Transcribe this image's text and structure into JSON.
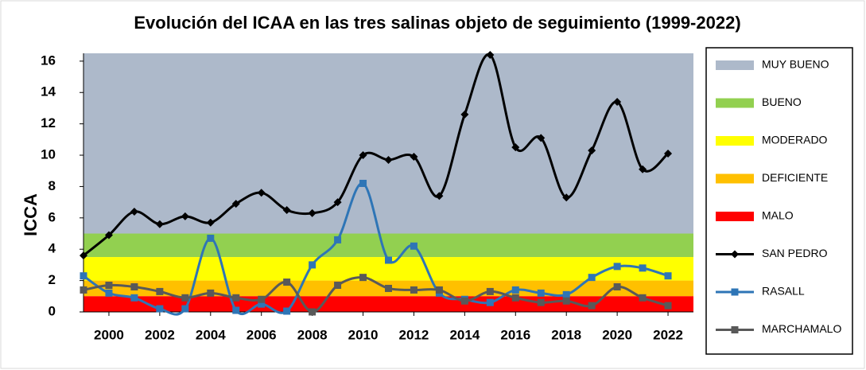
{
  "chart_data": {
    "type": "line",
    "title": "Evolución del ICAA en las tres salinas objeto de seguimiento (1999-2022)",
    "y_label": "ICCA",
    "x": [
      1999,
      2000,
      2001,
      2002,
      2003,
      2004,
      2005,
      2006,
      2007,
      2008,
      2009,
      2010,
      2011,
      2012,
      2013,
      2014,
      2015,
      2016,
      2017,
      2018,
      2019,
      2020,
      2021,
      2022
    ],
    "xlim": [
      1999,
      2023
    ],
    "xticks": [
      2000,
      2002,
      2004,
      2006,
      2008,
      2010,
      2012,
      2014,
      2016,
      2018,
      2020,
      2022
    ],
    "ylim": [
      0,
      16.5
    ],
    "yticks": [
      0,
      2,
      4,
      6,
      8,
      10,
      12,
      14,
      16
    ],
    "bands": [
      {
        "name": "MUY BUENO",
        "color": "#adb9ca",
        "range": [
          5,
          16.5
        ]
      },
      {
        "name": "BUENO",
        "color": "#92d050",
        "range": [
          3.5,
          5
        ]
      },
      {
        "name": "MODERADO",
        "color": "#ffff00",
        "range": [
          2,
          3.5
        ]
      },
      {
        "name": "DEFICIENTE",
        "color": "#ffc000",
        "range": [
          1,
          2
        ]
      },
      {
        "name": "MALO",
        "color": "#ff0000",
        "range": [
          0,
          1
        ]
      }
    ],
    "series": [
      {
        "name": "SAN PEDRO",
        "color": "#000000",
        "marker": "diamond",
        "values": [
          3.6,
          4.9,
          6.4,
          5.6,
          6.1,
          5.7,
          6.9,
          7.6,
          6.5,
          6.3,
          7.0,
          10.0,
          9.7,
          9.9,
          7.4,
          12.6,
          16.4,
          10.5,
          11.1,
          7.3,
          10.3,
          13.4,
          9.1,
          10.1
        ]
      },
      {
        "name": "RASALL",
        "color": "#2e75b6",
        "marker": "square",
        "values": [
          2.3,
          1.2,
          0.9,
          0.2,
          0.2,
          4.7,
          0.1,
          0.5,
          0.05,
          3.0,
          4.6,
          8.2,
          3.3,
          4.2,
          1.2,
          0.8,
          0.6,
          1.4,
          1.2,
          1.1,
          2.2,
          2.9,
          2.8,
          2.3
        ]
      },
      {
        "name": "MARCHAMALO",
        "color": "#595959",
        "marker": "square",
        "values": [
          1.4,
          1.7,
          1.6,
          1.3,
          0.9,
          1.2,
          0.9,
          0.8,
          1.9,
          0.0,
          1.7,
          2.2,
          1.5,
          1.4,
          1.4,
          0.7,
          1.3,
          0.9,
          0.6,
          0.7,
          0.4,
          1.6,
          0.9,
          0.4
        ]
      }
    ]
  }
}
